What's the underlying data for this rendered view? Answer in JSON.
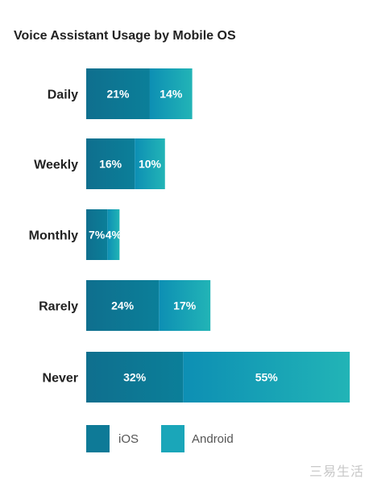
{
  "chart_data": {
    "type": "bar",
    "orientation": "horizontal",
    "stacked": true,
    "title": "Voice Assistant Usage by Mobile OS",
    "categories": [
      "Daily",
      "Weekly",
      "Monthly",
      "Rarely",
      "Never"
    ],
    "series": [
      {
        "name": "iOS",
        "values": [
          21,
          16,
          7,
          24,
          32
        ],
        "color": "#0e7a97"
      },
      {
        "name": "Android",
        "values": [
          14,
          10,
          4,
          17,
          55
        ],
        "color": "#1aa6b9"
      }
    ],
    "value_suffix": "%",
    "grid": false,
    "legend_position": "bottom"
  },
  "watermark_text": "三易生活"
}
